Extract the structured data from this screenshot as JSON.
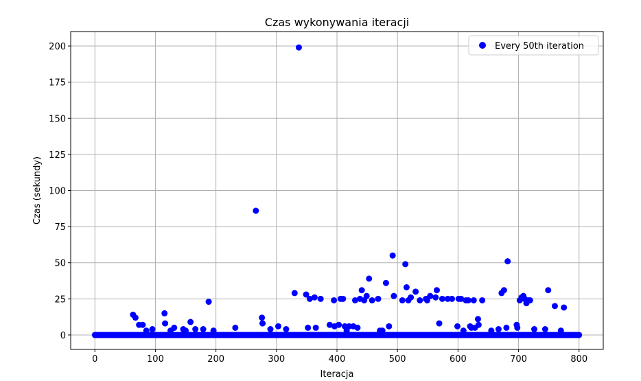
{
  "chart_data": {
    "type": "scatter",
    "title": "Czas wykonywania iteracji",
    "xlabel": "Iteracja",
    "ylabel": "Czas (sekundy)",
    "xlim": [
      -40,
      840
    ],
    "ylim": [
      -10,
      210
    ],
    "xticks": [
      0,
      100,
      200,
      300,
      400,
      500,
      600,
      700,
      800
    ],
    "yticks": [
      0,
      25,
      50,
      75,
      100,
      125,
      150,
      175,
      200
    ],
    "grid": true,
    "legend_position": "top-right",
    "colors": {
      "series": "#0000ff",
      "grid": "#b0b0b0",
      "axes": "#000000"
    },
    "series": [
      {
        "name": "Every 50th iteration",
        "baseline": {
          "x_start": 0,
          "x_end": 800,
          "x_step": 2,
          "y": 0
        },
        "points": [
          {
            "x": 63,
            "y": 14
          },
          {
            "x": 67,
            "y": 12
          },
          {
            "x": 73,
            "y": 7
          },
          {
            "x": 79,
            "y": 7
          },
          {
            "x": 85,
            "y": 3
          },
          {
            "x": 95,
            "y": 4
          },
          {
            "x": 115,
            "y": 15
          },
          {
            "x": 116,
            "y": 8
          },
          {
            "x": 125,
            "y": 3
          },
          {
            "x": 131,
            "y": 5
          },
          {
            "x": 146,
            "y": 4
          },
          {
            "x": 150,
            "y": 3
          },
          {
            "x": 158,
            "y": 9
          },
          {
            "x": 166,
            "y": 4
          },
          {
            "x": 179,
            "y": 4
          },
          {
            "x": 188,
            "y": 23
          },
          {
            "x": 196,
            "y": 3
          },
          {
            "x": 232,
            "y": 5
          },
          {
            "x": 266,
            "y": 86
          },
          {
            "x": 276,
            "y": 12
          },
          {
            "x": 277,
            "y": 8
          },
          {
            "x": 290,
            "y": 4
          },
          {
            "x": 303,
            "y": 6
          },
          {
            "x": 316,
            "y": 4
          },
          {
            "x": 330,
            "y": 29
          },
          {
            "x": 337,
            "y": 199
          },
          {
            "x": 349,
            "y": 28
          },
          {
            "x": 352,
            "y": 5
          },
          {
            "x": 355,
            "y": 25
          },
          {
            "x": 363,
            "y": 26
          },
          {
            "x": 365,
            "y": 5
          },
          {
            "x": 373,
            "y": 25
          },
          {
            "x": 388,
            "y": 7
          },
          {
            "x": 395,
            "y": 24
          },
          {
            "x": 396,
            "y": 6
          },
          {
            "x": 403,
            "y": 7
          },
          {
            "x": 406,
            "y": 25
          },
          {
            "x": 410,
            "y": 25
          },
          {
            "x": 413,
            "y": 6
          },
          {
            "x": 416,
            "y": 3
          },
          {
            "x": 420,
            "y": 6
          },
          {
            "x": 427,
            "y": 6
          },
          {
            "x": 430,
            "y": 24
          },
          {
            "x": 434,
            "y": 5
          },
          {
            "x": 438,
            "y": 25
          },
          {
            "x": 441,
            "y": 31
          },
          {
            "x": 445,
            "y": 24
          },
          {
            "x": 449,
            "y": 27
          },
          {
            "x": 453,
            "y": 39
          },
          {
            "x": 458,
            "y": 24
          },
          {
            "x": 468,
            "y": 25
          },
          {
            "x": 471,
            "y": 3
          },
          {
            "x": 475,
            "y": 3
          },
          {
            "x": 481,
            "y": 36
          },
          {
            "x": 486,
            "y": 6
          },
          {
            "x": 492,
            "y": 55
          },
          {
            "x": 494,
            "y": 27
          },
          {
            "x": 508,
            "y": 24
          },
          {
            "x": 513,
            "y": 49
          },
          {
            "x": 515,
            "y": 33
          },
          {
            "x": 518,
            "y": 24
          },
          {
            "x": 522,
            "y": 26
          },
          {
            "x": 530,
            "y": 30
          },
          {
            "x": 537,
            "y": 24
          },
          {
            "x": 547,
            "y": 25
          },
          {
            "x": 549,
            "y": 24
          },
          {
            "x": 554,
            "y": 27
          },
          {
            "x": 563,
            "y": 26
          },
          {
            "x": 565,
            "y": 31
          },
          {
            "x": 569,
            "y": 8
          },
          {
            "x": 574,
            "y": 25
          },
          {
            "x": 583,
            "y": 25
          },
          {
            "x": 590,
            "y": 25
          },
          {
            "x": 599,
            "y": 6
          },
          {
            "x": 601,
            "y": 25
          },
          {
            "x": 605,
            "y": 25
          },
          {
            "x": 609,
            "y": 3
          },
          {
            "x": 613,
            "y": 24
          },
          {
            "x": 617,
            "y": 24
          },
          {
            "x": 620,
            "y": 6
          },
          {
            "x": 622,
            "y": 5
          },
          {
            "x": 628,
            "y": 5
          },
          {
            "x": 626,
            "y": 24
          },
          {
            "x": 633,
            "y": 11
          },
          {
            "x": 634,
            "y": 7
          },
          {
            "x": 640,
            "y": 24
          },
          {
            "x": 655,
            "y": 3
          },
          {
            "x": 667,
            "y": 4
          },
          {
            "x": 672,
            "y": 29
          },
          {
            "x": 676,
            "y": 31
          },
          {
            "x": 680,
            "y": 5
          },
          {
            "x": 682,
            "y": 51
          },
          {
            "x": 697,
            "y": 7
          },
          {
            "x": 698,
            "y": 5
          },
          {
            "x": 702,
            "y": 24
          },
          {
            "x": 705,
            "y": 26
          },
          {
            "x": 708,
            "y": 27
          },
          {
            "x": 710,
            "y": 25
          },
          {
            "x": 713,
            "y": 22
          },
          {
            "x": 716,
            "y": 24
          },
          {
            "x": 719,
            "y": 24
          },
          {
            "x": 726,
            "y": 4
          },
          {
            "x": 744,
            "y": 4
          },
          {
            "x": 749,
            "y": 31
          },
          {
            "x": 760,
            "y": 20
          },
          {
            "x": 770,
            "y": 3
          },
          {
            "x": 775,
            "y": 19
          }
        ]
      }
    ]
  }
}
